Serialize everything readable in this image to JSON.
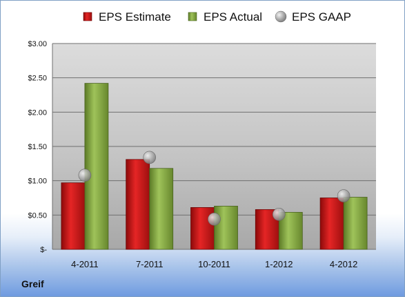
{
  "chart_data": {
    "type": "bar",
    "categories": [
      "4-2011",
      "7-2011",
      "10-2011",
      "1-2012",
      "4-2012"
    ],
    "series": [
      {
        "name": "EPS Estimate",
        "values": [
          0.97,
          1.31,
          0.61,
          0.58,
          0.75
        ],
        "color": "#d01c1c",
        "kind": "bar"
      },
      {
        "name": "EPS Actual",
        "values": [
          2.42,
          1.18,
          0.63,
          0.54,
          0.76
        ],
        "color": "#8db04a",
        "kind": "bar"
      },
      {
        "name": "EPS GAAP",
        "values": [
          1.08,
          1.34,
          0.44,
          0.51,
          0.78
        ],
        "color": "#a6a6a6",
        "kind": "marker"
      }
    ],
    "ylim": [
      0,
      3.0
    ],
    "yticks": [
      {
        "value": 0,
        "label": "$-"
      },
      {
        "value": 0.5,
        "label": "$0.50"
      },
      {
        "value": 1.0,
        "label": "$1.00"
      },
      {
        "value": 1.5,
        "label": "$1.50"
      },
      {
        "value": 2.0,
        "label": "$2.00"
      },
      {
        "value": 2.5,
        "label": "$2.50"
      },
      {
        "value": 3.0,
        "label": "$3.00"
      }
    ],
    "grid": true,
    "legend_position": "top"
  },
  "company": "Greif"
}
